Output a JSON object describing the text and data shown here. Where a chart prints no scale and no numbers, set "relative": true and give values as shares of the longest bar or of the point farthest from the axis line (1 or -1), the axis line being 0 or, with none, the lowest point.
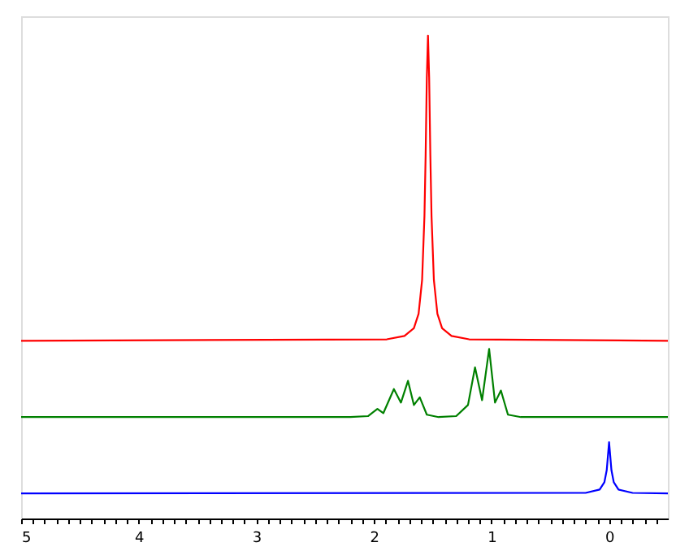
{
  "chart_data": {
    "type": "line",
    "relative": true,
    "xlim": [
      5,
      -0.5
    ],
    "xticks": [
      5,
      4,
      3,
      2,
      1,
      0,
      {
        "value": 4.9,
        "label": null
      },
      {
        "value": 4.8,
        "label": null
      },
      {
        "value": 4.7,
        "label": null
      },
      {
        "value": 4.6,
        "label": null
      },
      {
        "value": 4.5,
        "label": null
      },
      {
        "value": 4.4,
        "label": null
      },
      {
        "value": 4.3,
        "label": null
      },
      {
        "value": 4.2,
        "label": null
      },
      {
        "value": 4.1,
        "label": null
      },
      {
        "value": 3.9,
        "label": null
      },
      {
        "value": 3.8,
        "label": null
      },
      {
        "value": 3.7,
        "label": null
      },
      {
        "value": 3.6,
        "label": null
      },
      {
        "value": 3.5,
        "label": null
      },
      {
        "value": 3.4,
        "label": null
      },
      {
        "value": 3.3,
        "label": null
      },
      {
        "value": 3.2,
        "label": null
      },
      {
        "value": 3.1,
        "label": null
      },
      {
        "value": 2.9,
        "label": null
      },
      {
        "value": 2.8,
        "label": null
      },
      {
        "value": 2.7,
        "label": null
      },
      {
        "value": 2.6,
        "label": null
      },
      {
        "value": 2.5,
        "label": null
      },
      {
        "value": 2.4,
        "label": null
      },
      {
        "value": 2.3,
        "label": null
      },
      {
        "value": 2.2,
        "label": null
      },
      {
        "value": 2.1,
        "label": null
      },
      {
        "value": 1.9,
        "label": null
      },
      {
        "value": 1.8,
        "label": null
      },
      {
        "value": 1.7,
        "label": null
      },
      {
        "value": 1.6,
        "label": null
      },
      {
        "value": 1.5,
        "label": null
      },
      {
        "value": 1.4,
        "label": null
      },
      {
        "value": 1.3,
        "label": null
      },
      {
        "value": 1.2,
        "label": null
      },
      {
        "value": 1.1,
        "label": null
      },
      {
        "value": 0.9,
        "label": null
      },
      {
        "value": 0.8,
        "label": null
      },
      {
        "value": 0.7,
        "label": null
      },
      {
        "value": 0.6,
        "label": null
      },
      {
        "value": 0.5,
        "label": null
      },
      {
        "value": 0.4,
        "label": null
      },
      {
        "value": 0.3,
        "label": null
      },
      {
        "value": 0.2,
        "label": null
      },
      {
        "value": 0.1,
        "label": null
      },
      {
        "value": -0.1,
        "label": null
      },
      {
        "value": -0.2,
        "label": null
      },
      {
        "value": -0.3,
        "label": null
      },
      {
        "value": -0.4,
        "label": null
      }
    ],
    "grid": false,
    "tick_labels": "x",
    "series": [
      {
        "color": "#ff0000",
        "x": [
          5,
          1.89,
          1.74,
          1.66,
          1.62,
          1.59,
          1.57,
          1.56,
          1.55,
          1.54,
          1.53,
          1.52,
          1.51,
          1.49,
          1.46,
          1.42,
          1.34,
          1.19,
          -0.5
        ],
        "values": [
          0.368,
          0.371,
          0.378,
          0.394,
          0.424,
          0.494,
          0.627,
          0.753,
          0.913,
          1.0,
          0.913,
          0.753,
          0.627,
          0.494,
          0.424,
          0.394,
          0.378,
          0.371,
          0.368
        ]
      },
      {
        "color": "#008000",
        "x": [
          5,
          2.2,
          2.05,
          1.97,
          1.92,
          1.83,
          1.77,
          1.71,
          1.66,
          1.61,
          1.55,
          1.45,
          1.3,
          1.2,
          1.14,
          1.08,
          1.02,
          0.97,
          0.92,
          0.86,
          0.75,
          -0.5
        ],
        "values": [
          0.21,
          0.21,
          0.212,
          0.227,
          0.218,
          0.268,
          0.24,
          0.285,
          0.235,
          0.251,
          0.215,
          0.21,
          0.212,
          0.235,
          0.313,
          0.245,
          0.351,
          0.24,
          0.265,
          0.215,
          0.21,
          0.21
        ]
      },
      {
        "color": "#0000ff",
        "x": [
          5,
          0.2,
          0.08,
          0.04,
          0.02,
          0,
          -0.02,
          -0.04,
          -0.08,
          -0.2,
          -0.5
        ],
        "values": [
          0.052,
          0.053,
          0.06,
          0.075,
          0.1,
          0.158,
          0.1,
          0.075,
          0.06,
          0.053,
          0.052
        ]
      }
    ]
  }
}
